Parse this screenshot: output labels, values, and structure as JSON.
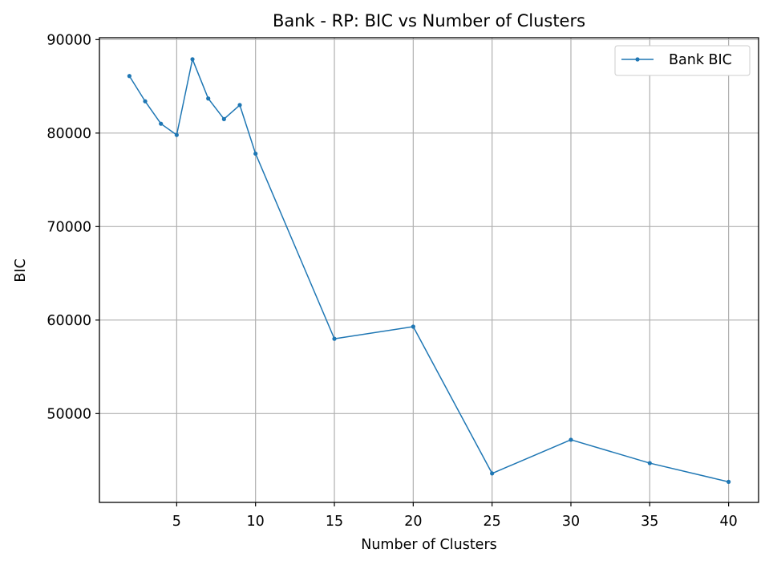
{
  "chart_data": {
    "type": "line",
    "title": "Bank - RP: BIC vs Number of Clusters",
    "xlabel": "Number of Clusters",
    "ylabel": "BIC",
    "xlim": [
      0.1,
      41.9
    ],
    "ylim": [
      40500,
      90200
    ],
    "xticks": [
      5,
      10,
      15,
      20,
      25,
      30,
      35,
      40
    ],
    "yticks": [
      50000,
      60000,
      70000,
      80000,
      90000
    ],
    "grid": true,
    "legend": "top-right",
    "series": [
      {
        "name": "Bank BIC",
        "color": "#1f77b4",
        "x": [
          2,
          3,
          4,
          5,
          6,
          7,
          8,
          9,
          10,
          15,
          20,
          25,
          30,
          35,
          40
        ],
        "y": [
          86100,
          83400,
          81000,
          79800,
          87900,
          83700,
          81500,
          83000,
          77800,
          58000,
          59300,
          43600,
          47200,
          44700,
          42700
        ]
      }
    ]
  }
}
